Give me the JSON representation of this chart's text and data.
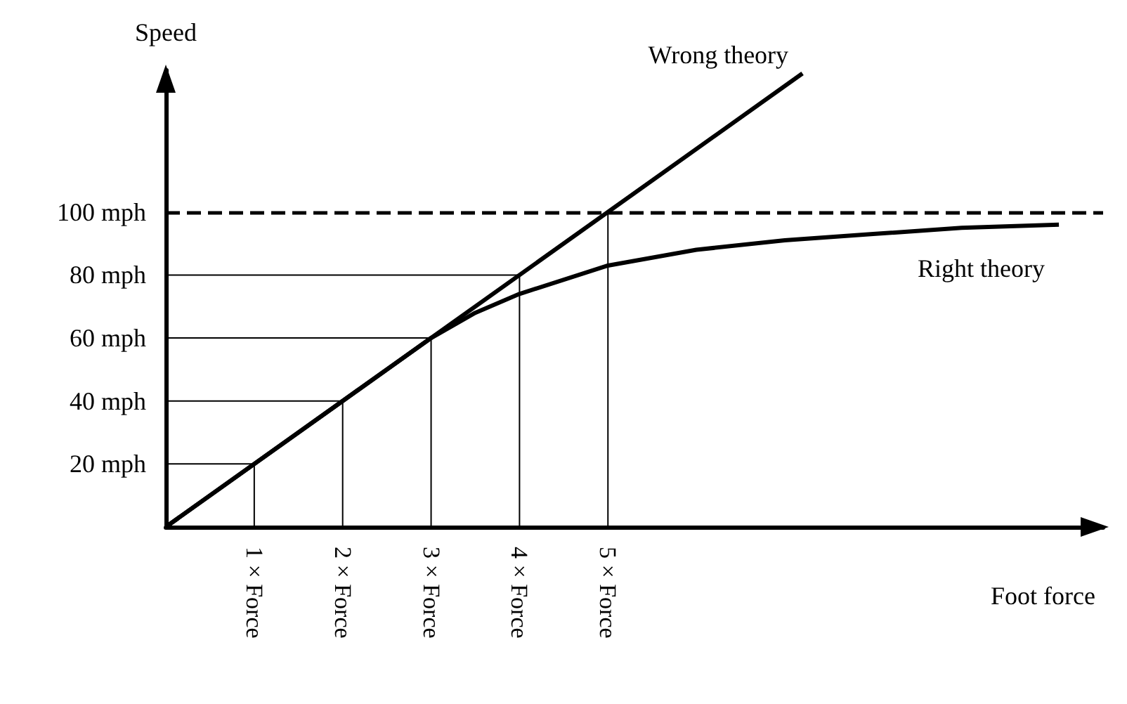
{
  "chart_data": {
    "type": "line",
    "xlabel": "Foot force",
    "ylabel": "Speed",
    "marker": "none",
    "xlim": [
      0,
      10.6
    ],
    "ylim": [
      0,
      145
    ],
    "xticks": [
      {
        "value": 1,
        "label": "1 × Force"
      },
      {
        "value": 2,
        "label": "2 × Force"
      },
      {
        "value": 3,
        "label": "3 × Force"
      },
      {
        "value": 4,
        "label": "4 × Force"
      },
      {
        "value": 5,
        "label": "5 × Force"
      }
    ],
    "yticks": [
      {
        "value": 20,
        "label": "20 mph"
      },
      {
        "value": 40,
        "label": "40 mph"
      },
      {
        "value": 60,
        "label": "60 mph"
      },
      {
        "value": 80,
        "label": "80 mph"
      },
      {
        "value": 100,
        "label": "100 mph"
      }
    ],
    "ref_lines": [
      {
        "axis": "y",
        "value": 100,
        "color": "#000000",
        "line_style": "dashed"
      }
    ],
    "series": [
      {
        "name": "Wrong theory",
        "color": "#000000",
        "x": [
          0,
          7.2
        ],
        "values": [
          0,
          144
        ]
      },
      {
        "name": "Right theory",
        "color": "#000000",
        "x": [
          0,
          1,
          2,
          3,
          3.5,
          4,
          5,
          6,
          7,
          8,
          9,
          10.1
        ],
        "values": [
          0,
          20,
          40,
          60,
          68,
          74,
          83,
          88,
          91,
          93,
          95,
          96
        ]
      },
      {
        "color": "#000000",
        "x": [
          0,
          1,
          1
        ],
        "values": [
          20,
          20,
          0
        ]
      },
      {
        "color": "#000000",
        "x": [
          0,
          2,
          2
        ],
        "values": [
          40,
          40,
          0
        ]
      },
      {
        "color": "#000000",
        "x": [
          0,
          3,
          3
        ],
        "values": [
          60,
          60,
          0
        ]
      },
      {
        "color": "#000000",
        "x": [
          0,
          4,
          4
        ],
        "values": [
          80,
          80,
          0
        ]
      },
      {
        "color": "#000000",
        "x": [
          5,
          5
        ],
        "values": [
          0,
          100
        ]
      }
    ]
  }
}
